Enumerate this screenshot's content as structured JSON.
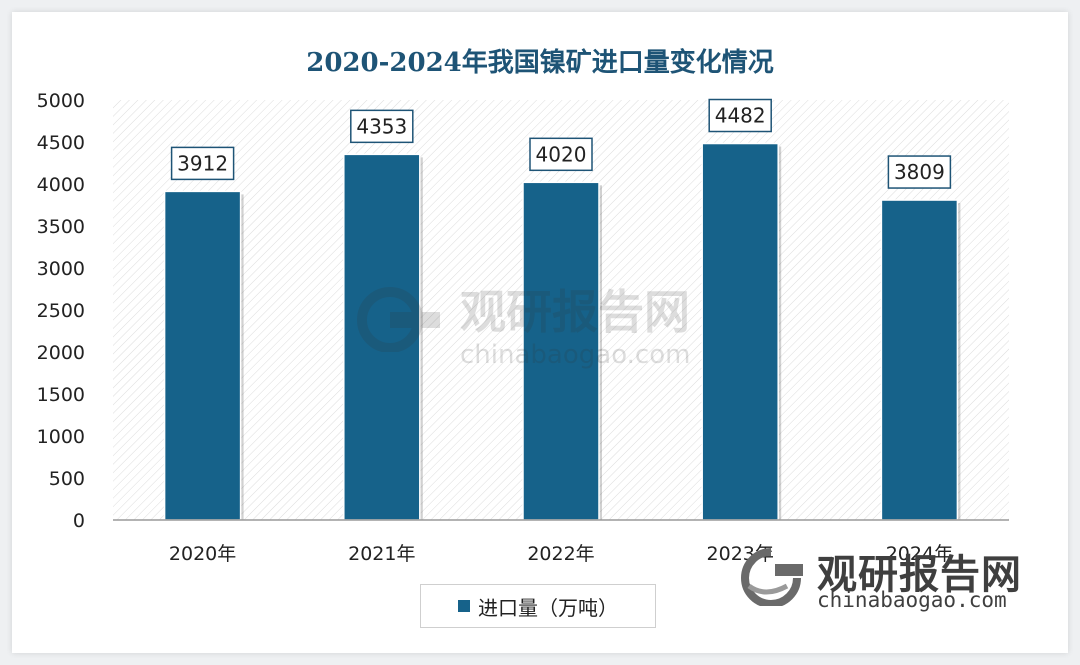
{
  "chart_data": {
    "type": "bar",
    "title": "2020-2024年我国镍矿进口量变化情况",
    "categories": [
      "2020年",
      "2021年",
      "2022年",
      "2023年",
      "2024年"
    ],
    "series": [
      {
        "name": "进口量（万吨）",
        "values": [
          3912,
          4353,
          4020,
          4482,
          3809
        ],
        "color": "#16628a"
      }
    ],
    "ylim": [
      0,
      5000
    ],
    "yticks": [
      0,
      500,
      1000,
      1500,
      2000,
      2500,
      3000,
      3500,
      4000,
      4500,
      5000
    ],
    "data_labels": true,
    "legend_position": "bottom",
    "grid": false
  },
  "brand": {
    "name": "观研报告网",
    "url": "chinabaogao.com"
  }
}
